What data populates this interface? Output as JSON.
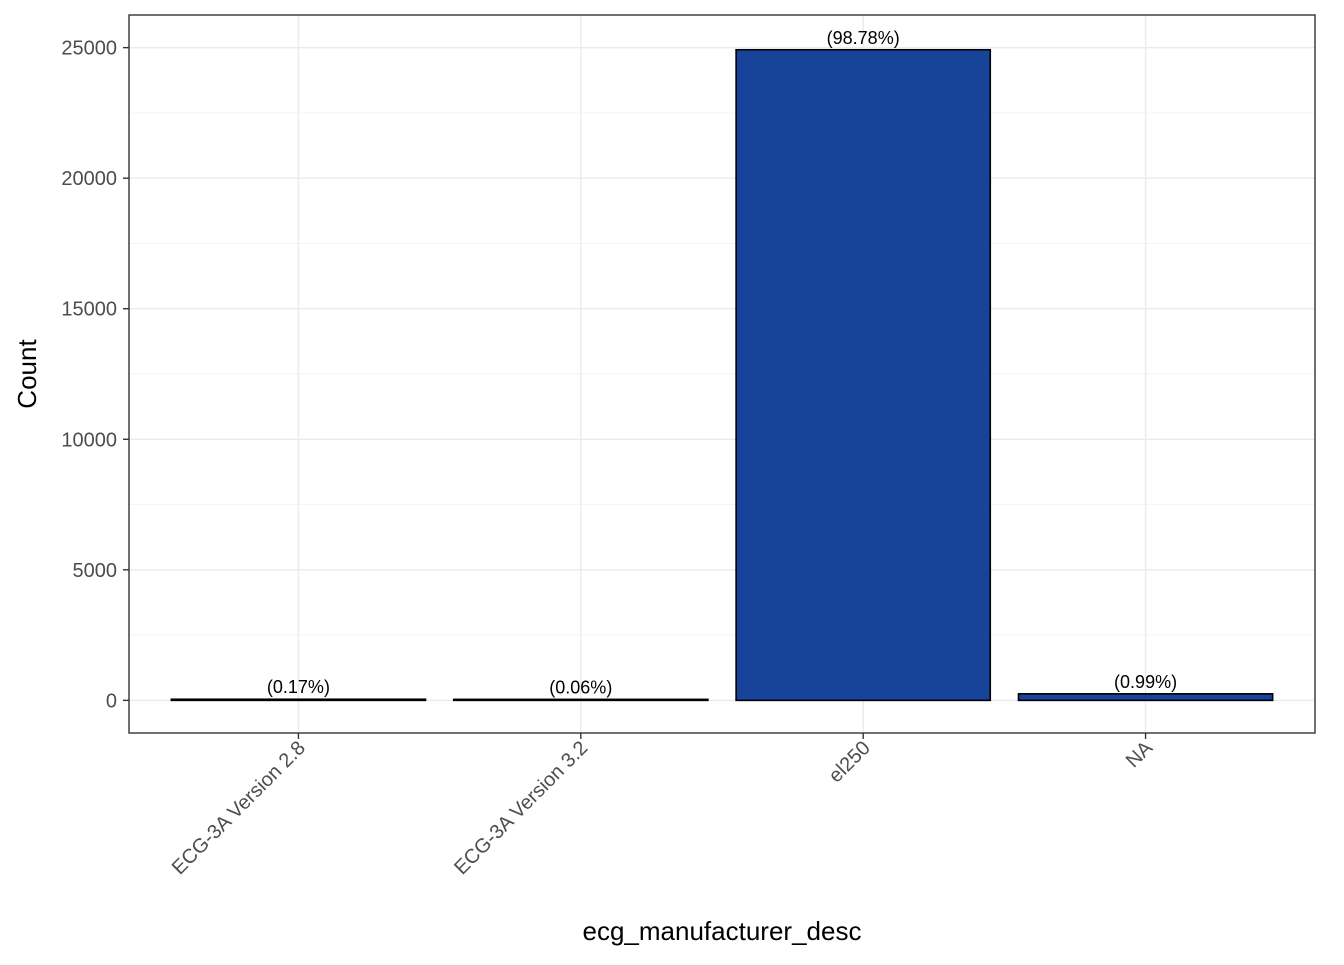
{
  "chart_data": {
    "type": "bar",
    "categories": [
      "ECG-3A Version 2.8",
      "ECG-3A Version 3.2",
      "el250",
      "NA"
    ],
    "values": [
      43,
      15,
      24919,
      250
    ],
    "bar_labels": [
      "(0.17%)",
      "(0.06%)",
      "(98.78%)",
      "(0.99%)"
    ],
    "title": "",
    "xlabel": "ecg_manufacturer_desc",
    "ylabel": "Count",
    "ylim": [
      -1250,
      26250
    ],
    "yticks": [
      0,
      5000,
      10000,
      15000,
      20000,
      25000
    ],
    "ytick_labels": [
      "0",
      "5000",
      "10000",
      "15000",
      "20000",
      "25000"
    ],
    "grid": true,
    "legend": "none",
    "colors": {
      "bar_fill": "#17439B",
      "bar_outline": "#000000",
      "panel_border": "#333333",
      "grid": "#ebebeb"
    }
  }
}
